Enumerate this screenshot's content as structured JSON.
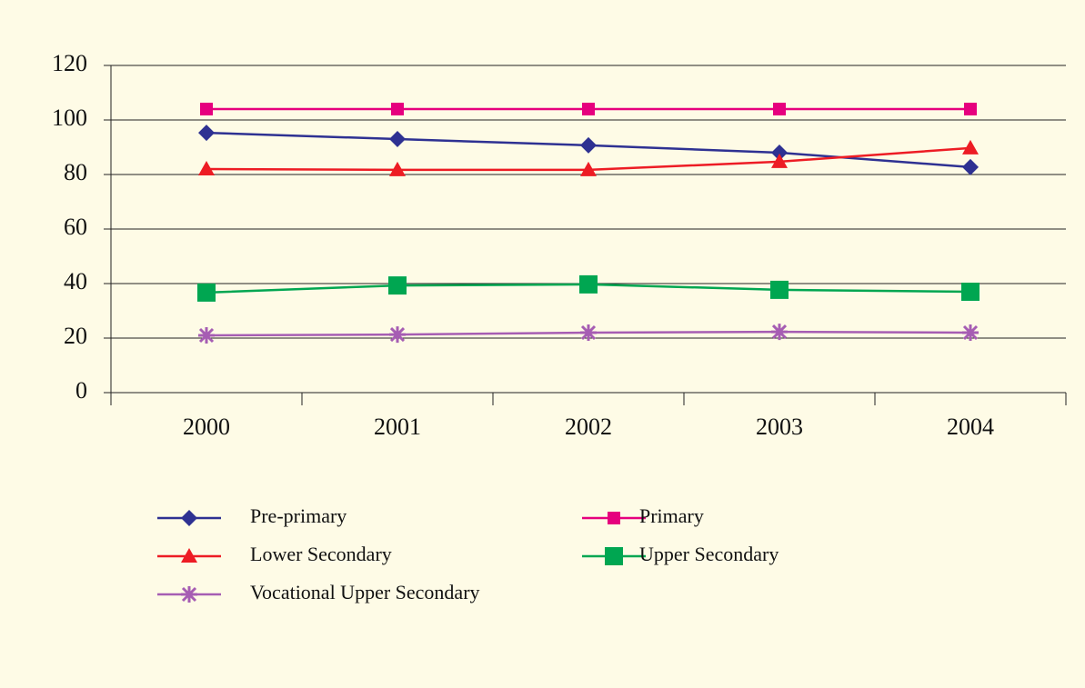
{
  "chart_data": {
    "type": "line",
    "categories": [
      "2000",
      "2001",
      "2002",
      "2003",
      "2004"
    ],
    "series": [
      {
        "name": "Pre-primary",
        "color": "#2e3192",
        "marker": "diamond",
        "values": [
          95.3,
          93,
          90.7,
          88,
          82.7
        ]
      },
      {
        "name": "Primary",
        "color": "#e6007e",
        "marker": "square",
        "values": [
          104,
          104,
          104,
          104,
          104
        ]
      },
      {
        "name": "Lower Secondary",
        "color": "#ed1c24",
        "marker": "triangle",
        "values": [
          82,
          81.7,
          81.7,
          84.7,
          89.7
        ]
      },
      {
        "name": "Upper Secondary",
        "color": "#00a651",
        "marker": "bigsquare",
        "values": [
          36.7,
          39.3,
          39.7,
          37.7,
          37
        ]
      },
      {
        "name": "Vocational Upper Secondary",
        "color": "#a65db3",
        "marker": "asterisk",
        "values": [
          21,
          21.3,
          22,
          22.3,
          22
        ]
      }
    ],
    "ylim": [
      0,
      120
    ],
    "yticks": [
      0,
      20,
      40,
      60,
      80,
      100,
      120
    ],
    "grid": true,
    "legend": "bottom"
  }
}
